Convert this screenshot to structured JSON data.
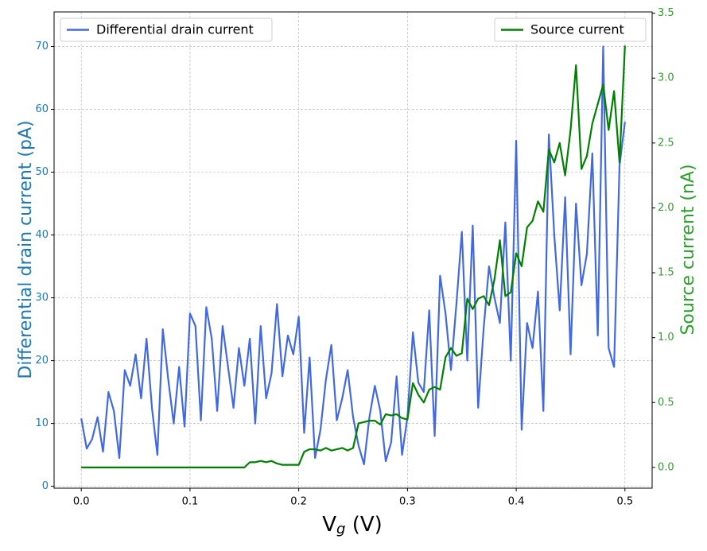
{
  "chart_data": {
    "type": "line",
    "xlabel_parts": [
      "V",
      "g",
      " (V)"
    ],
    "ylabel": "Differential drain current (pA)",
    "y2label": "Source current (nA)",
    "ylabel_color": "#1f77b4",
    "y2label_color": "#2ca02c",
    "grid": true,
    "xlim": [
      -0.025,
      0.525
    ],
    "ylim": [
      -0.3,
      75.5
    ],
    "y2lim": [
      -0.16,
      3.51
    ],
    "xticks": [
      {
        "value": 0,
        "label": "0.0"
      },
      0.1,
      0.2,
      0.3,
      0.4,
      0.5
    ],
    "yticks": [
      0,
      10,
      20,
      30,
      40,
      50,
      60,
      70
    ],
    "y2ticks": [
      {
        "value": 0,
        "label": "0.0"
      },
      0.5,
      {
        "value": 1,
        "label": "1.0"
      },
      1.5,
      {
        "value": 2,
        "label": "2.0"
      },
      2.5,
      {
        "value": 3,
        "label": "3.0"
      },
      3.5
    ],
    "x": [
      0,
      0.005,
      0.01,
      0.015,
      0.02,
      0.025,
      0.03,
      0.035,
      0.04,
      0.045,
      0.05,
      0.055,
      0.06,
      0.065,
      0.07,
      0.075,
      0.08,
      0.085,
      0.09,
      0.095,
      0.1,
      0.105,
      0.11,
      0.115,
      0.12,
      0.125,
      0.13,
      0.135,
      0.14,
      0.145,
      0.15,
      0.155,
      0.16,
      0.165,
      0.17,
      0.175,
      0.18,
      0.185,
      0.19,
      0.195,
      0.2,
      0.205,
      0.21,
      0.215,
      0.22,
      0.225,
      0.23,
      0.235,
      0.24,
      0.245,
      0.25,
      0.255,
      0.26,
      0.265,
      0.27,
      0.275,
      0.28,
      0.285,
      0.29,
      0.295,
      0.3,
      0.305,
      0.31,
      0.315,
      0.32,
      0.325,
      0.33,
      0.335,
      0.34,
      0.345,
      0.35,
      0.355,
      0.36,
      0.365,
      0.37,
      0.375,
      0.38,
      0.385,
      0.39,
      0.395,
      0.4,
      0.405,
      0.41,
      0.415,
      0.42,
      0.425,
      0.43,
      0.435,
      0.44,
      0.445,
      0.45,
      0.455,
      0.46,
      0.465,
      0.47,
      0.475,
      0.48,
      0.485,
      0.49,
      0.495,
      0.5
    ],
    "series": [
      {
        "name": "Differential drain current",
        "color": "#4169e1",
        "axis": "y",
        "legend": "upper left",
        "values": [
          10.8,
          6,
          7.5,
          11,
          5.5,
          15,
          12,
          4.5,
          18.5,
          16,
          21,
          14,
          23.5,
          12.5,
          5,
          25,
          17,
          10,
          19,
          9.5,
          27.5,
          25.5,
          10.5,
          28.5,
          23.5,
          12,
          25.5,
          19,
          12.5,
          22,
          16,
          23.5,
          10,
          25.5,
          14,
          18,
          29,
          17.5,
          24,
          21,
          27,
          8.5,
          20.5,
          4.5,
          9,
          17,
          22.5,
          10.5,
          14,
          18.5,
          11,
          6.5,
          3.5,
          11,
          16,
          12,
          4,
          7,
          17.5,
          5,
          11,
          24.5,
          16.5,
          15,
          28,
          8,
          33.5,
          27.5,
          18.5,
          29,
          40.5,
          20,
          41.5,
          12.5,
          25,
          35,
          30,
          26,
          42,
          20,
          55,
          9,
          26,
          22,
          31,
          12,
          56,
          40,
          28,
          46,
          21,
          45,
          32,
          37,
          53,
          24,
          70,
          22,
          19,
          51,
          58
        ]
      },
      {
        "name": "Source current",
        "color": "#008000",
        "axis": "y2",
        "legend": "upper right",
        "values": [
          0,
          0,
          0,
          0,
          0,
          0,
          0,
          0,
          0,
          0,
          0,
          0,
          0,
          0,
          0,
          0,
          0,
          0,
          0,
          0,
          0,
          0,
          0,
          0,
          0,
          0,
          0,
          0,
          0,
          0,
          0,
          0.04,
          0.04,
          0.05,
          0.04,
          0.05,
          0.03,
          0.02,
          0.02,
          0.02,
          0.02,
          0.12,
          0.14,
          0.14,
          0.13,
          0.15,
          0.13,
          0.14,
          0.15,
          0.13,
          0.15,
          0.34,
          0.35,
          0.36,
          0.36,
          0.33,
          0.41,
          0.4,
          0.41,
          0.38,
          0.37,
          0.65,
          0.56,
          0.5,
          0.6,
          0.62,
          0.6,
          0.85,
          0.92,
          0.86,
          0.88,
          1.3,
          1.22,
          1.3,
          1.32,
          1.25,
          1.45,
          1.75,
          1.32,
          1.35,
          1.65,
          1.55,
          1.85,
          1.9,
          2.05,
          1.97,
          2.45,
          2.35,
          2.5,
          2.25,
          2.6,
          3.1,
          2.3,
          2.4,
          2.65,
          2.8,
          2.95,
          2.6,
          2.9,
          2.35,
          3.25
        ]
      }
    ]
  }
}
